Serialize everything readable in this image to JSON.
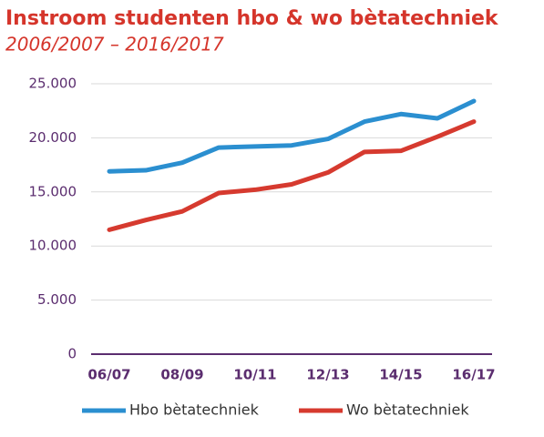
{
  "chart_data": {
    "type": "line",
    "title": "Instroom studenten hbo & wo bètatechniek",
    "subtitle": "2006/2007 – 2016/2017",
    "categories": [
      "06/07",
      null,
      "08/09",
      null,
      "10/11",
      null,
      "12/13",
      null,
      "14/15",
      null,
      "16/17"
    ],
    "series": [
      {
        "name": "Hbo bètatechniek",
        "color": "#2b8fd0",
        "values": [
          16900,
          17000,
          17700,
          19100,
          19200,
          19300,
          19900,
          21500,
          22200,
          21800,
          23400
        ]
      },
      {
        "name": "Wo bètatechniek",
        "color": "#d63a2f",
        "values": [
          11500,
          12400,
          13200,
          14900,
          15200,
          15700,
          16800,
          18700,
          18800,
          20100,
          21500
        ]
      }
    ],
    "ylim": [
      0,
      25000
    ],
    "yticks": [
      0,
      {
        "value": 5000,
        "label": "5.000"
      },
      {
        "value": 10000,
        "label": "10.000"
      },
      {
        "value": 15000,
        "label": "15.000"
      },
      {
        "value": 20000,
        "label": "20.000"
      },
      {
        "value": 25000,
        "label": "25.000"
      }
    ],
    "grid": true,
    "legend": "bottom"
  }
}
